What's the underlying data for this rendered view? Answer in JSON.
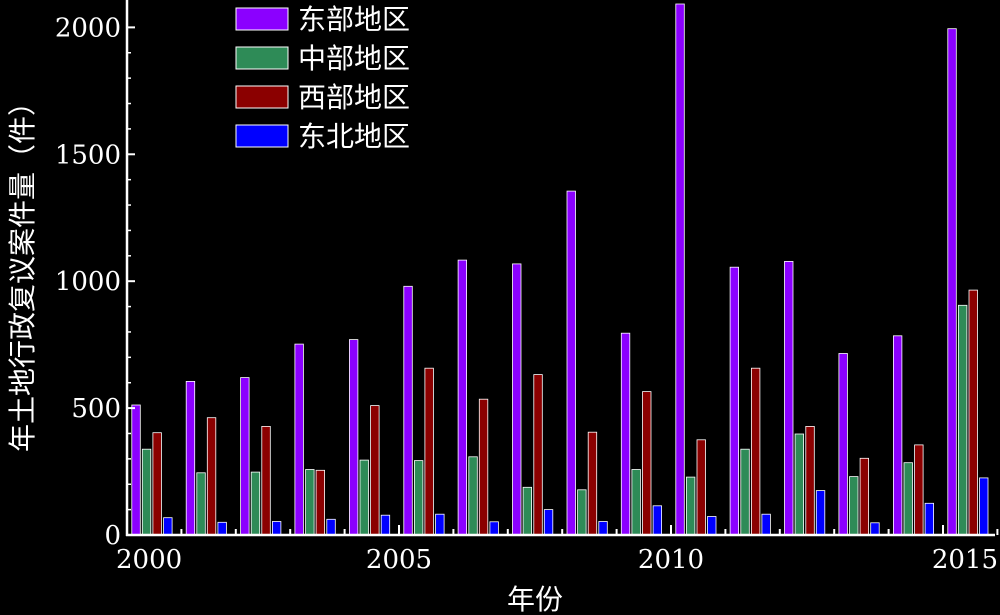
{
  "chart_data": {
    "type": "bar",
    "xlabel": "年份",
    "ylabel": "年土地行政复议案件量（件）",
    "ylim": [
      0,
      2100
    ],
    "y_ticks": [
      0,
      500,
      1000,
      1500,
      2000
    ],
    "x_tick_labels": [
      "2000",
      "2005",
      "2010",
      "2015"
    ],
    "grid": false,
    "legend_position": "top-left",
    "categories": [
      "2000",
      "2001",
      "2002",
      "2003",
      "2004",
      "2005",
      "2006",
      "2007",
      "2008",
      "2009",
      "2010",
      "2011",
      "2012",
      "2013",
      "2014",
      "2015"
    ],
    "series": [
      {
        "name": "东部地区",
        "color": "#8B00FF",
        "values": [
          512,
          605,
          620,
          752,
          770,
          980,
          1083,
          1068,
          1355,
          795,
          2092,
          1055,
          1078,
          715,
          785,
          1995
        ]
      },
      {
        "name": "中部地区",
        "color": "#2E8B57",
        "values": [
          338,
          245,
          248,
          258,
          295,
          293,
          308,
          188,
          178,
          258,
          228,
          338,
          398,
          230,
          285,
          905
        ]
      },
      {
        "name": "西部地区",
        "color": "#8B0000",
        "values": [
          403,
          462,
          428,
          255,
          510,
          657,
          535,
          632,
          405,
          565,
          375,
          657,
          428,
          302,
          355,
          965
        ]
      },
      {
        "name": "东北地区",
        "color": "#0000FF",
        "values": [
          68,
          50,
          53,
          62,
          78,
          82,
          52,
          100,
          53,
          115,
          73,
          82,
          175,
          48,
          125,
          225
        ]
      }
    ]
  }
}
